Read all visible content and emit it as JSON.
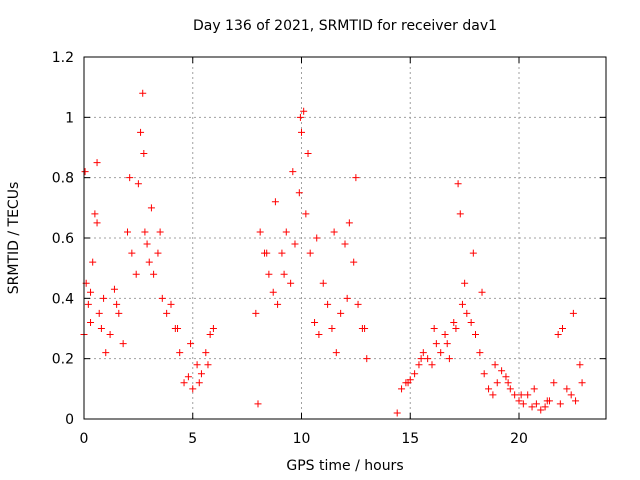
{
  "chart_data": {
    "type": "scatter",
    "title": "Day 136 of 2021, SRMTID for receiver dav1",
    "xlabel": "GPS time / hours",
    "ylabel": "SRMTID / TECUs",
    "xlim": [
      0,
      24
    ],
    "ylim": [
      0,
      1.2
    ],
    "xticks": [
      0,
      5,
      10,
      15,
      20
    ],
    "yticks": [
      0,
      0.2,
      0.4,
      0.6,
      0.8,
      1,
      1.2
    ],
    "xtick_labels": [
      "0",
      "5",
      "10",
      "15",
      "20"
    ],
    "ytick_labels": [
      "0",
      "0.2",
      "0.4",
      "0.6",
      "0.8",
      "1",
      "1.2"
    ],
    "grid": true,
    "marker": "+",
    "series": [
      {
        "name": "SRMTID",
        "color": "#ff0000",
        "x": [
          0.0,
          0.1,
          0.2,
          0.3,
          0.4,
          0.5,
          0.6,
          0.7,
          0.8,
          1.0,
          1.2,
          1.4,
          1.6,
          1.8,
          2.0,
          2.2,
          2.4,
          2.5,
          2.6,
          2.7,
          2.8,
          2.9,
          3.0,
          3.2,
          3.4,
          3.6,
          3.8,
          4.0,
          4.2,
          4.4,
          4.6,
          4.8,
          5.0,
          5.2,
          5.4,
          5.6,
          5.8,
          5.95,
          7.9,
          8.1,
          8.3,
          8.5,
          8.7,
          8.9,
          9.1,
          9.3,
          9.5,
          9.7,
          9.9,
          10.0,
          10.1,
          10.2,
          10.4,
          10.6,
          10.8,
          11.0,
          11.2,
          11.4,
          11.6,
          11.8,
          12.0,
          12.2,
          12.4,
          12.6,
          12.8,
          13.0,
          14.4,
          14.6,
          14.8,
          15.0,
          15.2,
          15.4,
          15.6,
          15.8,
          16.0,
          16.2,
          16.4,
          16.6,
          16.8,
          17.0,
          17.2,
          17.3,
          17.4,
          17.6,
          17.8,
          18.0,
          18.2,
          18.4,
          18.6,
          18.8,
          19.0,
          19.2,
          19.4,
          19.6,
          19.8,
          20.0,
          20.2,
          20.4,
          20.6,
          20.8,
          21.0,
          21.2,
          21.4,
          21.6,
          21.8,
          22.0,
          22.2,
          22.4,
          22.6,
          22.8,
          0.05,
          0.3,
          0.6,
          0.9,
          1.5,
          2.1,
          2.75,
          3.1,
          3.5,
          4.3,
          4.9,
          5.3,
          5.7,
          8.0,
          8.4,
          8.8,
          9.2,
          9.6,
          9.95,
          10.3,
          10.7,
          11.5,
          12.1,
          12.5,
          12.9,
          14.9,
          15.5,
          16.1,
          16.7,
          17.1,
          17.5,
          17.9,
          18.3,
          18.9,
          19.5,
          20.1,
          20.7,
          21.3,
          21.9,
          22.5,
          22.9
        ],
        "y": [
          0.28,
          0.45,
          0.38,
          0.32,
          0.52,
          0.68,
          0.85,
          0.35,
          0.3,
          0.22,
          0.28,
          0.43,
          0.35,
          0.25,
          0.62,
          0.55,
          0.48,
          0.78,
          0.95,
          1.08,
          0.62,
          0.58,
          0.52,
          0.48,
          0.55,
          0.4,
          0.35,
          0.38,
          0.3,
          0.22,
          0.12,
          0.14,
          0.1,
          0.18,
          0.15,
          0.22,
          0.28,
          0.3,
          0.35,
          0.62,
          0.55,
          0.48,
          0.42,
          0.38,
          0.55,
          0.62,
          0.45,
          0.58,
          0.75,
          0.95,
          1.02,
          0.68,
          0.55,
          0.32,
          0.28,
          0.45,
          0.38,
          0.3,
          0.22,
          0.35,
          0.58,
          0.65,
          0.52,
          0.38,
          0.3,
          0.2,
          0.02,
          0.1,
          0.12,
          0.13,
          0.15,
          0.18,
          0.22,
          0.2,
          0.18,
          0.25,
          0.22,
          0.28,
          0.2,
          0.32,
          0.78,
          0.68,
          0.38,
          0.35,
          0.32,
          0.28,
          0.22,
          0.15,
          0.1,
          0.08,
          0.12,
          0.16,
          0.14,
          0.1,
          0.08,
          0.06,
          0.05,
          0.08,
          0.04,
          0.05,
          0.03,
          0.04,
          0.06,
          0.12,
          0.28,
          0.3,
          0.1,
          0.08,
          0.06,
          0.18,
          0.82,
          0.42,
          0.65,
          0.4,
          0.38,
          0.8,
          0.88,
          0.7,
          0.62,
          0.3,
          0.25,
          0.12,
          0.18,
          0.05,
          0.55,
          0.72,
          0.48,
          0.82,
          1.0,
          0.88,
          0.6,
          0.62,
          0.4,
          0.8,
          0.3,
          0.12,
          0.2,
          0.3,
          0.25,
          0.3,
          0.45,
          0.55,
          0.42,
          0.18,
          0.12,
          0.08,
          0.1,
          0.06,
          0.05,
          0.35,
          0.12
        ]
      }
    ]
  }
}
